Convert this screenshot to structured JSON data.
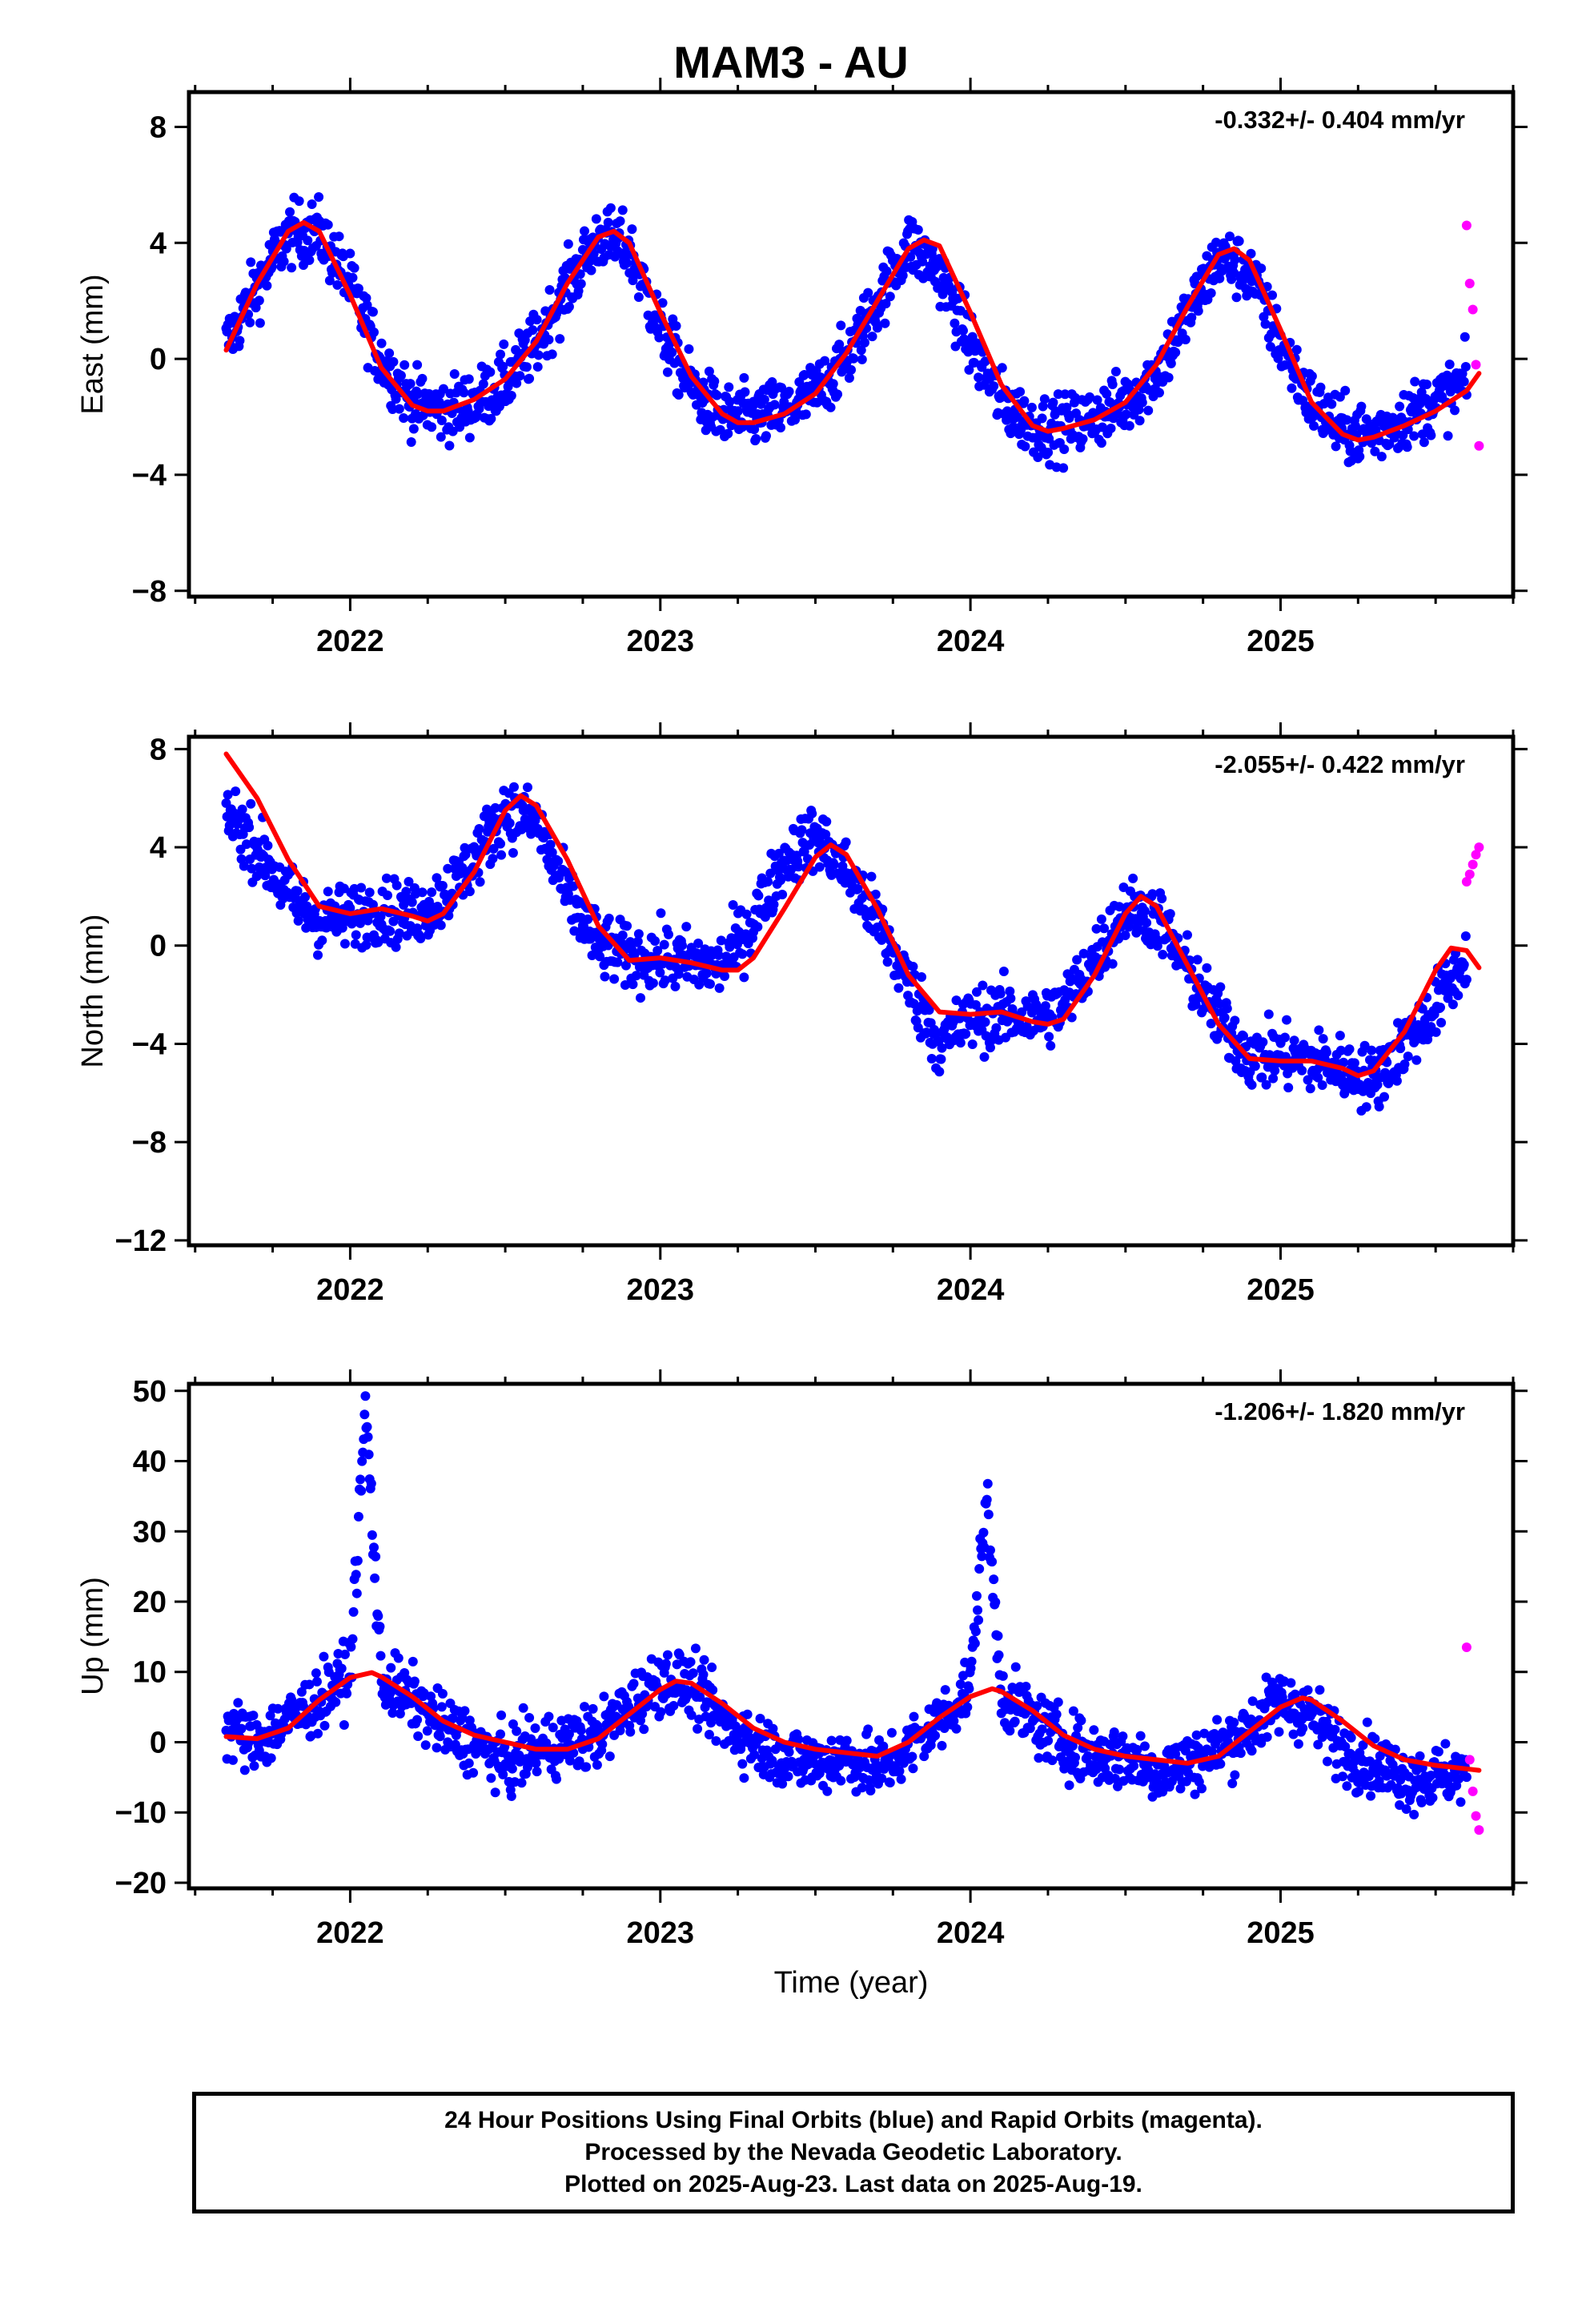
{
  "page": {
    "title": "MAM3 - AU",
    "xlabel": "Time (year)",
    "footer": [
      "24 Hour Positions Using Final Orbits (blue) and Rapid Orbits (magenta).",
      "Processed by the Nevada Geodetic Laboratory.",
      "Plotted on 2025-Aug-23. Last data on 2025-Aug-19."
    ]
  },
  "colors": {
    "final": "#0000ff",
    "rapid": "#ff00ff",
    "model": "#ff0000",
    "axes": "#000000"
  },
  "chart_data": [
    {
      "type": "scatter",
      "ylabel": "East (mm)",
      "rate": "-0.332+/- 0.404 mm/yr",
      "xlim": [
        2021.48,
        2025.75
      ],
      "ylim": [
        -8.2,
        9.2
      ],
      "xticks": [
        2022,
        2023,
        2024,
        2025
      ],
      "yticks": [
        -8,
        -4,
        0,
        4,
        8
      ],
      "series": [
        {
          "kind": "final",
          "x": [
            2021.6,
            2021.7,
            2021.8,
            2021.9,
            2022.0,
            2022.1,
            2022.2,
            2022.3,
            2022.4,
            2022.5,
            2022.6,
            2022.7,
            2022.8,
            2022.9,
            2023.0,
            2023.1,
            2023.2,
            2023.3,
            2023.4,
            2023.5,
            2023.6,
            2023.7,
            2023.8,
            2023.9,
            2024.0,
            2024.1,
            2024.2,
            2024.3,
            2024.4,
            2024.5,
            2024.6,
            2024.7,
            2024.8,
            2024.9,
            2025.0,
            2025.1,
            2025.2,
            2025.3,
            2025.4,
            2025.5,
            2025.6
          ],
          "y": [
            0.5,
            2.5,
            4.3,
            4.4,
            2.5,
            0.0,
            -1.5,
            -1.8,
            -1.5,
            -0.8,
            0.5,
            2.5,
            4.2,
            3.8,
            1.0,
            -1.0,
            -2.0,
            -2.0,
            -1.8,
            -1.2,
            0.0,
            2.0,
            4.0,
            3.0,
            0.5,
            -1.5,
            -2.3,
            -2.4,
            -2.0,
            -1.5,
            -0.5,
            1.5,
            3.5,
            3.0,
            0.5,
            -1.5,
            -2.5,
            -2.6,
            -2.0,
            -1.5,
            -0.8
          ]
        },
        {
          "kind": "rapid",
          "x": [
            2025.6,
            2025.61,
            2025.62,
            2025.63,
            2025.64
          ],
          "y": [
            4.6,
            2.6,
            1.7,
            -0.2,
            -3.0
          ]
        },
        {
          "kind": "model",
          "x": [
            2021.6,
            2021.7,
            2021.8,
            2021.85,
            2021.9,
            2022.0,
            2022.1,
            2022.2,
            2022.25,
            2022.3,
            2022.4,
            2022.5,
            2022.6,
            2022.7,
            2022.8,
            2022.85,
            2022.9,
            2023.0,
            2023.1,
            2023.2,
            2023.25,
            2023.3,
            2023.4,
            2023.5,
            2023.6,
            2023.7,
            2023.8,
            2023.85,
            2023.9,
            2024.0,
            2024.1,
            2024.2,
            2024.25,
            2024.3,
            2024.4,
            2024.5,
            2024.6,
            2024.7,
            2024.8,
            2024.85,
            2024.9,
            2025.0,
            2025.1,
            2025.2,
            2025.25,
            2025.3,
            2025.4,
            2025.5,
            2025.6,
            2025.64
          ],
          "y": [
            0.3,
            2.6,
            4.4,
            4.7,
            4.4,
            2.2,
            -0.3,
            -1.6,
            -1.8,
            -1.8,
            -1.4,
            -0.7,
            0.6,
            2.6,
            4.2,
            4.4,
            4.0,
            1.6,
            -0.6,
            -1.9,
            -2.2,
            -2.2,
            -1.9,
            -1.2,
            0.2,
            2.0,
            3.8,
            4.1,
            3.9,
            1.6,
            -0.9,
            -2.3,
            -2.5,
            -2.4,
            -2.1,
            -1.5,
            -0.2,
            1.8,
            3.6,
            3.8,
            3.4,
            1.0,
            -1.5,
            -2.6,
            -2.8,
            -2.7,
            -2.3,
            -1.8,
            -1.1,
            -0.5
          ]
        }
      ]
    },
    {
      "type": "scatter",
      "ylabel": "North (mm)",
      "rate": "-2.055+/- 0.422 mm/yr",
      "xlim": [
        2021.48,
        2025.75
      ],
      "ylim": [
        -12.2,
        8.5
      ],
      "xticks": [
        2022,
        2023,
        2024,
        2025
      ],
      "yticks": [
        -12,
        -8,
        -4,
        0,
        4,
        8
      ],
      "series": [
        {
          "kind": "final",
          "x": [
            2021.6,
            2021.7,
            2021.8,
            2021.9,
            2022.0,
            2022.1,
            2022.2,
            2022.3,
            2022.4,
            2022.5,
            2022.6,
            2022.7,
            2022.8,
            2022.9,
            2023.0,
            2023.1,
            2023.2,
            2023.3,
            2023.4,
            2023.5,
            2023.6,
            2023.7,
            2023.8,
            2023.9,
            2024.0,
            2024.1,
            2024.2,
            2024.3,
            2024.4,
            2024.5,
            2024.6,
            2024.7,
            2024.8,
            2024.9,
            2025.0,
            2025.1,
            2025.2,
            2025.3,
            2025.4,
            2025.5,
            2025.6
          ],
          "y": [
            5.5,
            4.0,
            2.0,
            1.0,
            1.2,
            1.5,
            1.2,
            2.0,
            3.5,
            5.5,
            5.0,
            2.0,
            0.0,
            -0.5,
            -0.5,
            -0.7,
            -0.8,
            1.0,
            3.5,
            4.5,
            3.0,
            1.0,
            -1.5,
            -4.0,
            -3.0,
            -2.8,
            -3.0,
            -2.5,
            -0.5,
            1.5,
            1.2,
            -1.0,
            -3.0,
            -4.5,
            -4.5,
            -4.7,
            -5.0,
            -5.5,
            -4.0,
            -2.5,
            -0.5
          ]
        },
        {
          "kind": "rapid",
          "x": [
            2025.6,
            2025.61,
            2025.62,
            2025.63,
            2025.64
          ],
          "y": [
            2.6,
            2.9,
            3.3,
            3.7,
            4.0
          ]
        },
        {
          "kind": "model",
          "x": [
            2021.6,
            2021.7,
            2021.8,
            2021.9,
            2022.0,
            2022.1,
            2022.2,
            2022.25,
            2022.3,
            2022.4,
            2022.5,
            2022.55,
            2022.6,
            2022.7,
            2022.8,
            2022.9,
            2023.0,
            2023.1,
            2023.2,
            2023.25,
            2023.3,
            2023.4,
            2023.5,
            2023.55,
            2023.6,
            2023.7,
            2023.8,
            2023.9,
            2024.0,
            2024.1,
            2024.2,
            2024.25,
            2024.3,
            2024.4,
            2024.5,
            2024.55,
            2024.6,
            2024.7,
            2024.8,
            2024.9,
            2025.0,
            2025.1,
            2025.2,
            2025.25,
            2025.3,
            2025.4,
            2025.5,
            2025.55,
            2025.6,
            2025.64
          ],
          "y": [
            7.8,
            6.0,
            3.5,
            1.6,
            1.3,
            1.5,
            1.2,
            1.0,
            1.3,
            3.0,
            5.5,
            6.1,
            5.7,
            3.5,
            0.8,
            -0.6,
            -0.5,
            -0.7,
            -1.0,
            -1.0,
            -0.5,
            1.5,
            3.6,
            4.1,
            3.7,
            1.5,
            -1.2,
            -2.7,
            -2.8,
            -2.7,
            -3.1,
            -3.2,
            -3.0,
            -1.2,
            1.3,
            2.0,
            1.6,
            -0.8,
            -3.2,
            -4.6,
            -4.7,
            -4.7,
            -5.0,
            -5.3,
            -5.1,
            -3.5,
            -1.0,
            -0.1,
            -0.2,
            -0.9
          ]
        }
      ]
    },
    {
      "type": "scatter",
      "ylabel": "Up (mm)",
      "rate": "-1.206+/- 1.820 mm/yr",
      "xlim": [
        2021.48,
        2025.75
      ],
      "ylim": [
        -20.8,
        51.0
      ],
      "xticks": [
        2022,
        2023,
        2024,
        2025
      ],
      "yticks": [
        -20,
        -10,
        0,
        10,
        20,
        30,
        40,
        50
      ],
      "series": [
        {
          "kind": "final",
          "x": [
            2021.6,
            2021.7,
            2021.8,
            2021.9,
            2022.0,
            2022.05,
            2022.1,
            2022.2,
            2022.3,
            2022.4,
            2022.5,
            2022.6,
            2022.7,
            2022.8,
            2022.9,
            2023.0,
            2023.1,
            2023.2,
            2023.3,
            2023.4,
            2023.5,
            2023.6,
            2023.7,
            2023.8,
            2023.9,
            2024.0,
            2024.05,
            2024.1,
            2024.2,
            2024.3,
            2024.4,
            2024.5,
            2024.6,
            2024.7,
            2024.8,
            2024.9,
            2025.0,
            2025.1,
            2025.2,
            2025.3,
            2025.4,
            2025.5,
            2025.6
          ],
          "y": [
            2.0,
            0.0,
            3.0,
            6.0,
            10.0,
            48.0,
            9.0,
            6.0,
            2.0,
            0.0,
            -3.0,
            -1.0,
            0.0,
            1.0,
            5.0,
            9.0,
            8.0,
            3.0,
            0.0,
            -2.0,
            -3.0,
            -2.0,
            -4.0,
            -1.0,
            3.0,
            8.0,
            35.0,
            7.0,
            3.0,
            0.0,
            -2.0,
            -2.0,
            -4.0,
            -3.0,
            -1.0,
            2.0,
            6.0,
            4.0,
            -1.0,
            -3.0,
            -5.0,
            -5.0,
            -4.0
          ]
        },
        {
          "kind": "rapid",
          "x": [
            2025.6,
            2025.61,
            2025.62,
            2025.63,
            2025.64
          ],
          "y": [
            13.5,
            -2.5,
            -7.0,
            -10.5,
            -12.5
          ]
        },
        {
          "kind": "model",
          "x": [
            2021.6,
            2021.7,
            2021.8,
            2021.9,
            2022.0,
            2022.07,
            2022.1,
            2022.2,
            2022.3,
            2022.4,
            2022.5,
            2022.6,
            2022.7,
            2022.8,
            2022.9,
            2023.0,
            2023.05,
            2023.1,
            2023.2,
            2023.3,
            2023.4,
            2023.5,
            2023.6,
            2023.7,
            2023.8,
            2023.9,
            2024.0,
            2024.07,
            2024.1,
            2024.2,
            2024.3,
            2024.4,
            2024.5,
            2024.6,
            2024.7,
            2024.8,
            2024.9,
            2025.0,
            2025.07,
            2025.1,
            2025.2,
            2025.3,
            2025.4,
            2025.5,
            2025.6,
            2025.64
          ],
          "y": [
            0.8,
            0.5,
            2.0,
            6.0,
            9.2,
            9.9,
            9.3,
            6.5,
            3.0,
            1.0,
            0.0,
            -1.0,
            -1.0,
            0.5,
            4.0,
            7.5,
            8.7,
            8.4,
            5.5,
            2.0,
            0.0,
            -1.0,
            -1.5,
            -2.0,
            0.0,
            3.5,
            6.5,
            7.6,
            7.2,
            4.5,
            1.0,
            -1.0,
            -2.0,
            -2.5,
            -3.0,
            -2.0,
            1.5,
            5.0,
            6.3,
            6.0,
            3.0,
            -0.5,
            -2.5,
            -3.3,
            -3.8,
            -4.0
          ]
        }
      ]
    }
  ]
}
